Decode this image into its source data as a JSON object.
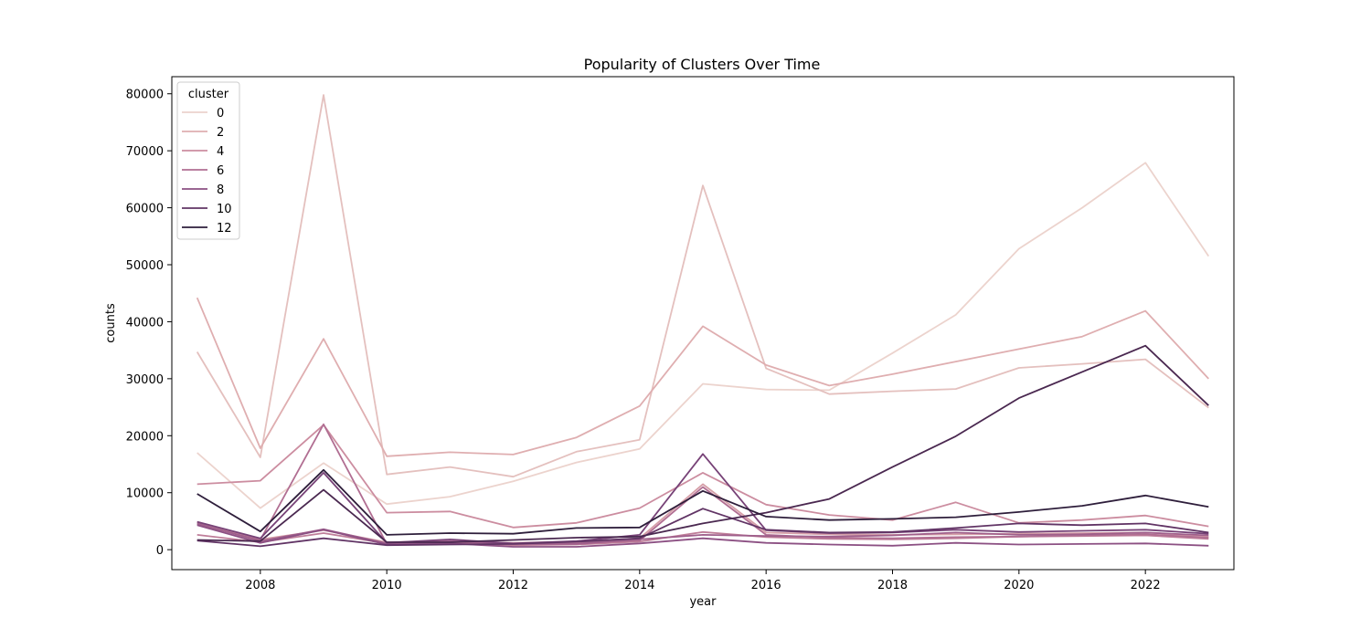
{
  "chart_data": {
    "type": "line",
    "title": "Popularity of Clusters Over Time",
    "xlabel": "year",
    "ylabel": "counts",
    "xlim": [
      2006.6,
      2023.4
    ],
    "ylim": [
      -3500,
      83000
    ],
    "xticks": [
      2008,
      2010,
      2012,
      2014,
      2016,
      2018,
      2020,
      2022
    ],
    "yticks": [
      0,
      10000,
      20000,
      30000,
      40000,
      50000,
      60000,
      70000,
      80000
    ],
    "grid": false,
    "legend": {
      "title": "cluster",
      "placement": "top-left",
      "entries": [
        {
          "label": "0",
          "color": "#ecd3cd"
        },
        {
          "label": "2",
          "color": "#dfaeb0"
        },
        {
          "label": "4",
          "color": "#cc8da0"
        },
        {
          "label": "6",
          "color": "#b16e92"
        },
        {
          "label": "8",
          "color": "#8c5083"
        },
        {
          "label": "10",
          "color": "#613465"
        },
        {
          "label": "12",
          "color": "#2e1e3b"
        }
      ]
    },
    "x": [
      2007,
      2008,
      2009,
      2010,
      2011,
      2012,
      2013,
      2014,
      2015,
      2016,
      2017,
      2018,
      2019,
      2020,
      2021,
      2022,
      2023
    ],
    "series": [
      {
        "color": "#ecd3cd",
        "values": [
          17000,
          7300,
          15200,
          8000,
          9300,
          12000,
          15300,
          17700,
          29100,
          28100,
          28000,
          34500,
          41200,
          52800,
          60000,
          67900,
          51500
        ]
      },
      {
        "color": "#e4c0be",
        "values": [
          34700,
          16200,
          79800,
          13200,
          14500,
          12800,
          17200,
          19300,
          63900,
          31800,
          27300,
          27800,
          28200,
          31900,
          32600,
          33400,
          24900
        ]
      },
      {
        "color": "#dfaeb0",
        "values": [
          44200,
          17800,
          37000,
          16400,
          17100,
          16700,
          19700,
          25200,
          39200,
          32400,
          28800,
          30800,
          33000,
          35200,
          37400,
          41900,
          30000
        ]
      },
      {
        "color": "#d69fa8",
        "values": [
          4800,
          1800,
          3400,
          1300,
          1500,
          1200,
          1400,
          2000,
          11500,
          3000,
          2700,
          2600,
          2700,
          2800,
          2900,
          3000,
          2300
        ]
      },
      {
        "color": "#cc8da0",
        "values": [
          11500,
          12100,
          21900,
          6500,
          6700,
          3900,
          4700,
          7300,
          13500,
          7900,
          6100,
          5200,
          8300,
          4700,
          5200,
          6000,
          4100
        ]
      },
      {
        "color": "#bf7e99",
        "values": [
          2600,
          1300,
          2900,
          1100,
          1200,
          800,
          900,
          1400,
          3100,
          2200,
          1900,
          1800,
          2000,
          2300,
          2400,
          2500,
          1900
        ]
      },
      {
        "color": "#b16e92",
        "values": [
          4500,
          1700,
          22000,
          1000,
          1300,
          1000,
          1200,
          1600,
          11000,
          2600,
          2100,
          2000,
          2200,
          2300,
          2500,
          2700,
          2100
        ]
      },
      {
        "color": "#9f5f8b",
        "values": [
          4600,
          1500,
          3600,
          1100,
          1500,
          1000,
          1000,
          1800,
          2600,
          2400,
          2300,
          2500,
          3000,
          2600,
          2700,
          3000,
          2500
        ]
      },
      {
        "color": "#8c5083",
        "values": [
          4300,
          1200,
          3500,
          900,
          1100,
          500,
          500,
          1100,
          2000,
          1200,
          900,
          700,
          1200,
          900,
          1000,
          1100,
          700
        ]
      },
      {
        "color": "#774277",
        "values": [
          4900,
          2000,
          13500,
          1200,
          1800,
          1100,
          1500,
          2600,
          16800,
          3400,
          2900,
          3000,
          3500,
          3100,
          3300,
          3500,
          2800
        ]
      },
      {
        "color": "#613465",
        "values": [
          1600,
          600,
          2000,
          800,
          900,
          1000,
          1400,
          2000,
          7200,
          3500,
          3000,
          3100,
          3800,
          4600,
          4300,
          4600,
          3000
        ]
      },
      {
        "color": "#4a2850",
        "values": [
          1700,
          1500,
          10500,
          1300,
          1300,
          1700,
          2100,
          2300,
          4600,
          6500,
          8900,
          14500,
          19900,
          26600,
          31200,
          35800,
          25300
        ]
      },
      {
        "color": "#2e1e3b",
        "values": [
          9800,
          3200,
          14000,
          2600,
          2900,
          2800,
          3800,
          3900,
          10300,
          5800,
          5200,
          5400,
          5700,
          6600,
          7700,
          9500,
          7500
        ]
      }
    ]
  }
}
